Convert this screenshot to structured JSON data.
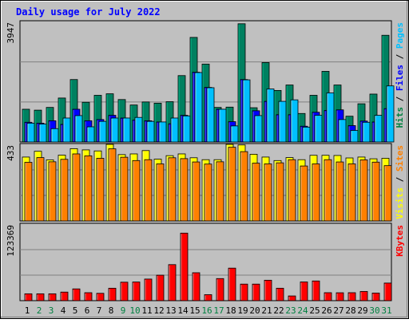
{
  "chart_data": [
    {
      "type": "bar",
      "title": "Daily usage for July 2022",
      "ymax_label": "3947",
      "ylim": [
        0,
        3947
      ],
      "grid": true,
      "axis_label_parts": [
        {
          "text": "Hits",
          "color": "#008040"
        },
        {
          "text": " / ",
          "color": "#000000"
        },
        {
          "text": "Files",
          "color": "#0000ff"
        },
        {
          "text": " / ",
          "color": "#000000"
        },
        {
          "text": "Pages",
          "color": "#00c0ff"
        }
      ],
      "categories": [
        "1",
        "2",
        "3",
        "4",
        "5",
        "6",
        "7",
        "8",
        "9",
        "10",
        "11",
        "12",
        "13",
        "14",
        "15",
        "16",
        "17",
        "18",
        "19",
        "20",
        "21",
        "22",
        "23",
        "24",
        "25",
        "26",
        "27",
        "28",
        "29",
        "30",
        "31"
      ],
      "weekend_days": [
        "2",
        "3",
        "9",
        "10",
        "16",
        "17",
        "23",
        "24",
        "30",
        "31"
      ],
      "series": [
        {
          "name": "Hits",
          "color": "#008060",
          "values": [
            1080,
            1050,
            1140,
            1450,
            2060,
            1310,
            1540,
            1590,
            1400,
            1220,
            1320,
            1280,
            1330,
            2190,
            3450,
            2570,
            1140,
            1150,
            3900,
            1130,
            2620,
            1700,
            1880,
            940,
            1540,
            2330,
            1880,
            850,
            1260,
            1580,
            3520
          ]
        },
        {
          "name": "Files",
          "color": "#0000ff",
          "values": [
            650,
            620,
            700,
            580,
            1080,
            700,
            740,
            880,
            790,
            720,
            700,
            660,
            600,
            880,
            2300,
            1800,
            1080,
            670,
            2060,
            1030,
            1340,
            900,
            900,
            520,
            980,
            1040,
            1060,
            540,
            690,
            660,
            1100
          ]
        },
        {
          "name": "Pages",
          "color": "#00c0ff",
          "values": [
            620,
            590,
            440,
            790,
            870,
            500,
            680,
            790,
            790,
            810,
            680,
            660,
            790,
            860,
            2290,
            1790,
            1080,
            530,
            2050,
            870,
            1750,
            1340,
            1390,
            490,
            880,
            1620,
            740,
            380,
            650,
            880,
            1850
          ]
        }
      ]
    },
    {
      "type": "bar",
      "ymax_label": "433",
      "ylim": [
        0,
        433
      ],
      "grid": true,
      "axis_label_parts": [
        {
          "text": "Visits",
          "color": "#ffff00"
        },
        {
          "text": " / ",
          "color": "#000000"
        },
        {
          "text": "Sites",
          "color": "#ff8000"
        }
      ],
      "categories": [
        "1",
        "2",
        "3",
        "4",
        "5",
        "6",
        "7",
        "8",
        "9",
        "10",
        "11",
        "12",
        "13",
        "14",
        "15",
        "16",
        "17",
        "18",
        "19",
        "20",
        "21",
        "22",
        "23",
        "24",
        "25",
        "26",
        "27",
        "28",
        "29",
        "30",
        "31"
      ],
      "series": [
        {
          "name": "Visits",
          "color": "#ffff00",
          "values": [
            365,
            398,
            349,
            376,
            413,
            406,
            400,
            440,
            379,
            383,
            402,
            353,
            373,
            383,
            361,
            350,
            350,
            440,
            434,
            381,
            365,
            345,
            362,
            350,
            375,
            375,
            374,
            360,
            365,
            355,
            358
          ]
        },
        {
          "name": "Sites",
          "color": "#ff8000",
          "values": [
            335,
            362,
            338,
            352,
            383,
            372,
            358,
            412,
            364,
            345,
            350,
            326,
            361,
            356,
            337,
            325,
            338,
            421,
            396,
            330,
            326,
            332,
            350,
            314,
            326,
            350,
            337,
            326,
            349,
            336,
            316
          ]
        }
      ]
    },
    {
      "type": "bar",
      "ymax_label": "123369",
      "ylim": [
        0,
        123369
      ],
      "grid": true,
      "axis_label_parts": [
        {
          "text": "KBytes",
          "color": "#ff0000"
        }
      ],
      "categories": [
        "1",
        "2",
        "3",
        "4",
        "5",
        "6",
        "7",
        "8",
        "9",
        "10",
        "11",
        "12",
        "13",
        "14",
        "15",
        "16",
        "17",
        "18",
        "19",
        "20",
        "21",
        "22",
        "23",
        "24",
        "25",
        "26",
        "27",
        "28",
        "29",
        "30",
        "31"
      ],
      "series": [
        {
          "name": "KBytes",
          "color": "#ff0000",
          "values": [
            11200,
            11200,
            11200,
            14000,
            19200,
            13000,
            12000,
            20300,
            30100,
            30400,
            35200,
            41500,
            58700,
            110000,
            45500,
            9800,
            36000,
            53000,
            27000,
            27000,
            33300,
            20300,
            7700,
            30500,
            32100,
            13000,
            12900,
            13000,
            15000,
            12400,
            28700
          ]
        }
      ]
    }
  ],
  "x_axis": {
    "weekend_color": "#008040",
    "weekday_color": "#000000"
  }
}
